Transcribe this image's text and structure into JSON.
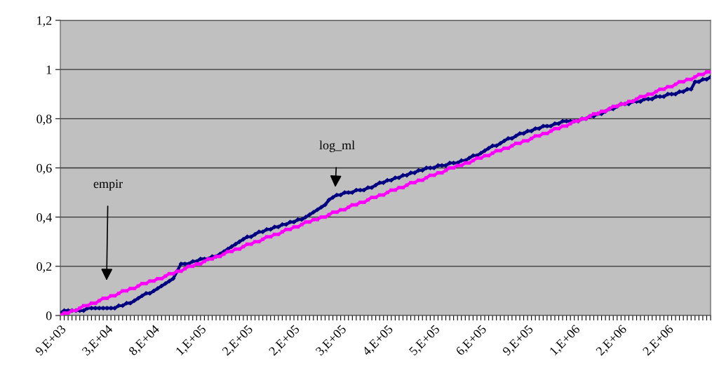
{
  "chart_data": {
    "type": "line",
    "categories": [
      "9,E+03",
      null,
      null,
      null,
      null,
      null,
      null,
      null,
      null,
      null,
      null,
      null,
      "3,E+04",
      null,
      null,
      null,
      null,
      null,
      null,
      null,
      null,
      null,
      null,
      null,
      "8,E+04",
      null,
      null,
      null,
      null,
      null,
      null,
      null,
      null,
      null,
      null,
      null,
      "1,E+05",
      null,
      null,
      null,
      null,
      null,
      null,
      null,
      null,
      null,
      null,
      null,
      "2,E+05",
      null,
      null,
      null,
      null,
      null,
      null,
      null,
      null,
      null,
      null,
      null,
      "2,E+05",
      null,
      null,
      null,
      null,
      null,
      null,
      null,
      null,
      null,
      null,
      null,
      "3,E+05",
      null,
      null,
      null,
      null,
      null,
      null,
      null,
      null,
      null,
      null,
      null,
      "4,E+05",
      null,
      null,
      null,
      null,
      null,
      null,
      null,
      null,
      null,
      null,
      null,
      "5,E+05",
      null,
      null,
      null,
      null,
      null,
      null,
      null,
      null,
      null,
      null,
      null,
      "6,E+05",
      null,
      null,
      null,
      null,
      null,
      null,
      null,
      null,
      null,
      null,
      null,
      "9,E+05",
      null,
      null,
      null,
      null,
      null,
      null,
      null,
      null,
      null,
      null,
      null,
      "1,E+06",
      null,
      null,
      null,
      null,
      null,
      null,
      null,
      null,
      null,
      null,
      null,
      "2,E+06",
      null,
      null,
      null,
      null,
      null,
      null,
      null,
      null,
      null,
      null,
      null,
      "2,E+06",
      null,
      null,
      null,
      null,
      null,
      null,
      null,
      null,
      null,
      null,
      null
    ],
    "series": [
      {
        "color": "#000080",
        "marker": "diamond",
        "values": [
          0.01,
          0.02,
          0.02,
          0.02,
          0.02,
          0.02,
          0.02,
          0.03,
          0.03,
          0.03,
          0.03,
          0.03,
          0.03,
          0.03,
          0.03,
          0.04,
          0.04,
          0.05,
          0.05,
          0.06,
          0.07,
          0.08,
          0.09,
          0.09,
          0.1,
          0.11,
          0.12,
          0.13,
          0.14,
          0.15,
          0.18,
          0.21,
          0.21,
          0.21,
          0.22,
          0.22,
          0.23,
          0.23,
          0.23,
          0.24,
          0.24,
          0.25,
          0.26,
          0.27,
          0.28,
          0.29,
          0.3,
          0.31,
          0.32,
          0.32,
          0.33,
          0.34,
          0.34,
          0.35,
          0.35,
          0.36,
          0.36,
          0.37,
          0.37,
          0.38,
          0.38,
          0.39,
          0.39,
          0.4,
          0.41,
          0.42,
          0.43,
          0.44,
          0.45,
          0.47,
          0.48,
          0.49,
          0.49,
          0.5,
          0.5,
          0.5,
          0.51,
          0.51,
          0.51,
          0.52,
          0.52,
          0.53,
          0.54,
          0.54,
          0.55,
          0.55,
          0.56,
          0.56,
          0.57,
          0.57,
          0.58,
          0.58,
          0.59,
          0.59,
          0.6,
          0.6,
          0.6,
          0.61,
          0.61,
          0.61,
          0.62,
          0.62,
          0.62,
          0.63,
          0.63,
          0.64,
          0.65,
          0.65,
          0.66,
          0.67,
          0.68,
          0.69,
          0.69,
          0.7,
          0.71,
          0.72,
          0.72,
          0.73,
          0.74,
          0.74,
          0.75,
          0.75,
          0.76,
          0.76,
          0.77,
          0.77,
          0.77,
          0.78,
          0.78,
          0.79,
          0.79,
          0.79,
          0.79,
          0.79,
          0.8,
          0.8,
          0.81,
          0.81,
          0.82,
          0.82,
          0.83,
          0.84,
          0.84,
          0.85,
          0.86,
          0.86,
          0.86,
          0.87,
          0.87,
          0.87,
          0.88,
          0.88,
          0.88,
          0.89,
          0.89,
          0.89,
          0.9,
          0.9,
          0.9,
          0.91,
          0.91,
          0.92,
          0.92,
          0.95,
          0.95,
          0.96,
          0.96,
          0.97
        ]
      },
      {
        "color": "#ff00ff",
        "marker": "square",
        "values": [
          0.0,
          0.01,
          0.01,
          0.02,
          0.02,
          0.03,
          0.04,
          0.04,
          0.05,
          0.05,
          0.06,
          0.07,
          0.07,
          0.08,
          0.08,
          0.09,
          0.1,
          0.1,
          0.11,
          0.11,
          0.12,
          0.13,
          0.13,
          0.14,
          0.14,
          0.15,
          0.15,
          0.16,
          0.17,
          0.17,
          0.18,
          0.18,
          0.19,
          0.2,
          0.2,
          0.21,
          0.21,
          0.22,
          0.23,
          0.23,
          0.24,
          0.24,
          0.25,
          0.26,
          0.26,
          0.27,
          0.27,
          0.28,
          0.29,
          0.29,
          0.3,
          0.3,
          0.31,
          0.32,
          0.32,
          0.33,
          0.33,
          0.34,
          0.35,
          0.35,
          0.36,
          0.36,
          0.37,
          0.38,
          0.38,
          0.39,
          0.39,
          0.4,
          0.4,
          0.41,
          0.42,
          0.42,
          0.43,
          0.43,
          0.44,
          0.45,
          0.45,
          0.46,
          0.46,
          0.47,
          0.48,
          0.48,
          0.49,
          0.49,
          0.5,
          0.51,
          0.51,
          0.52,
          0.52,
          0.53,
          0.54,
          0.54,
          0.55,
          0.55,
          0.56,
          0.57,
          0.57,
          0.58,
          0.58,
          0.59,
          0.6,
          0.6,
          0.61,
          0.61,
          0.62,
          0.62,
          0.63,
          0.64,
          0.64,
          0.65,
          0.65,
          0.66,
          0.67,
          0.67,
          0.68,
          0.68,
          0.69,
          0.7,
          0.7,
          0.71,
          0.71,
          0.72,
          0.73,
          0.73,
          0.74,
          0.74,
          0.75,
          0.76,
          0.76,
          0.77,
          0.77,
          0.78,
          0.79,
          0.79,
          0.8,
          0.8,
          0.81,
          0.82,
          0.82,
          0.83,
          0.83,
          0.84,
          0.85,
          0.85,
          0.86,
          0.86,
          0.87,
          0.87,
          0.88,
          0.89,
          0.89,
          0.9,
          0.9,
          0.91,
          0.92,
          0.92,
          0.93,
          0.93,
          0.94,
          0.95,
          0.95,
          0.96,
          0.96,
          0.97,
          0.98,
          0.98,
          0.99,
          0.99
        ]
      }
    ],
    "ylim": [
      0,
      1.2
    ],
    "yticks": [
      0,
      {
        "value": 0.2,
        "label": "0,2"
      },
      {
        "value": 0.4,
        "label": "0,4"
      },
      {
        "value": 0.6,
        "label": "0,6"
      },
      {
        "value": 0.8,
        "label": "0,8"
      },
      1,
      {
        "value": 1.2,
        "label": "1,2"
      }
    ],
    "grid": "y",
    "annotations": [
      "log_ml",
      "empir"
    ]
  }
}
